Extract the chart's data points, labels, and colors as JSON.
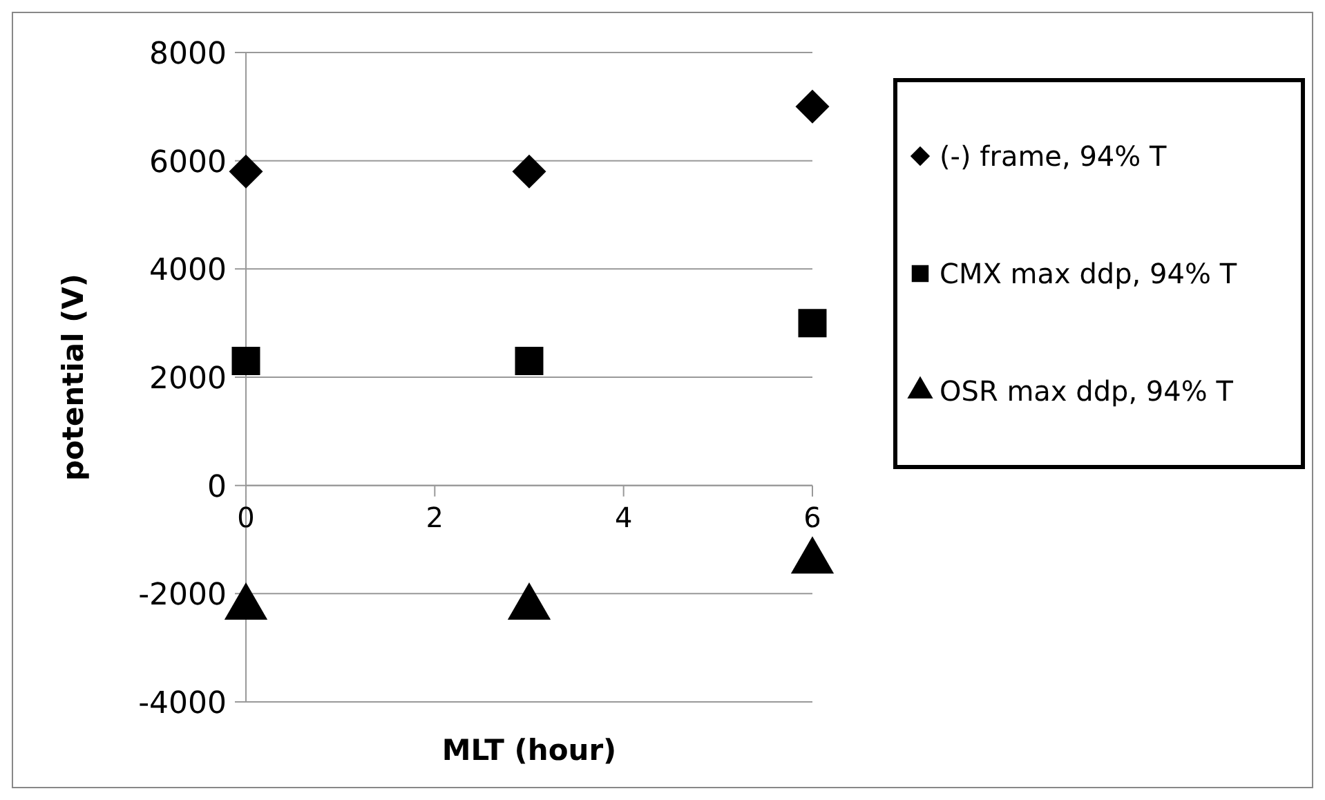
{
  "chart_data": {
    "type": "scatter",
    "xlabel": "MLT (hour)",
    "ylabel": "potential (V)",
    "x": [
      0,
      3,
      6
    ],
    "series": [
      {
        "name": "(-) frame, 94% T",
        "color": "#000000",
        "marker": "diamond",
        "values": [
          5800,
          5800,
          7000
        ]
      },
      {
        "name": "CMX max ddp, 94% T",
        "color": "#000000",
        "marker": "square",
        "values": [
          2300,
          2300,
          3000
        ]
      },
      {
        "name": "OSR max ddp, 94% T",
        "color": "#000000",
        "marker": "triangle",
        "values": [
          -2250,
          -2250,
          -1400
        ]
      }
    ],
    "xlim": [
      0,
      6
    ],
    "xticks": [
      0,
      2,
      4,
      6
    ],
    "ylim": [
      -4000,
      8000
    ],
    "yticks": [
      -4000,
      -2000,
      0,
      2000,
      4000,
      6000,
      8000
    ],
    "grid": "y",
    "legend": "right"
  }
}
